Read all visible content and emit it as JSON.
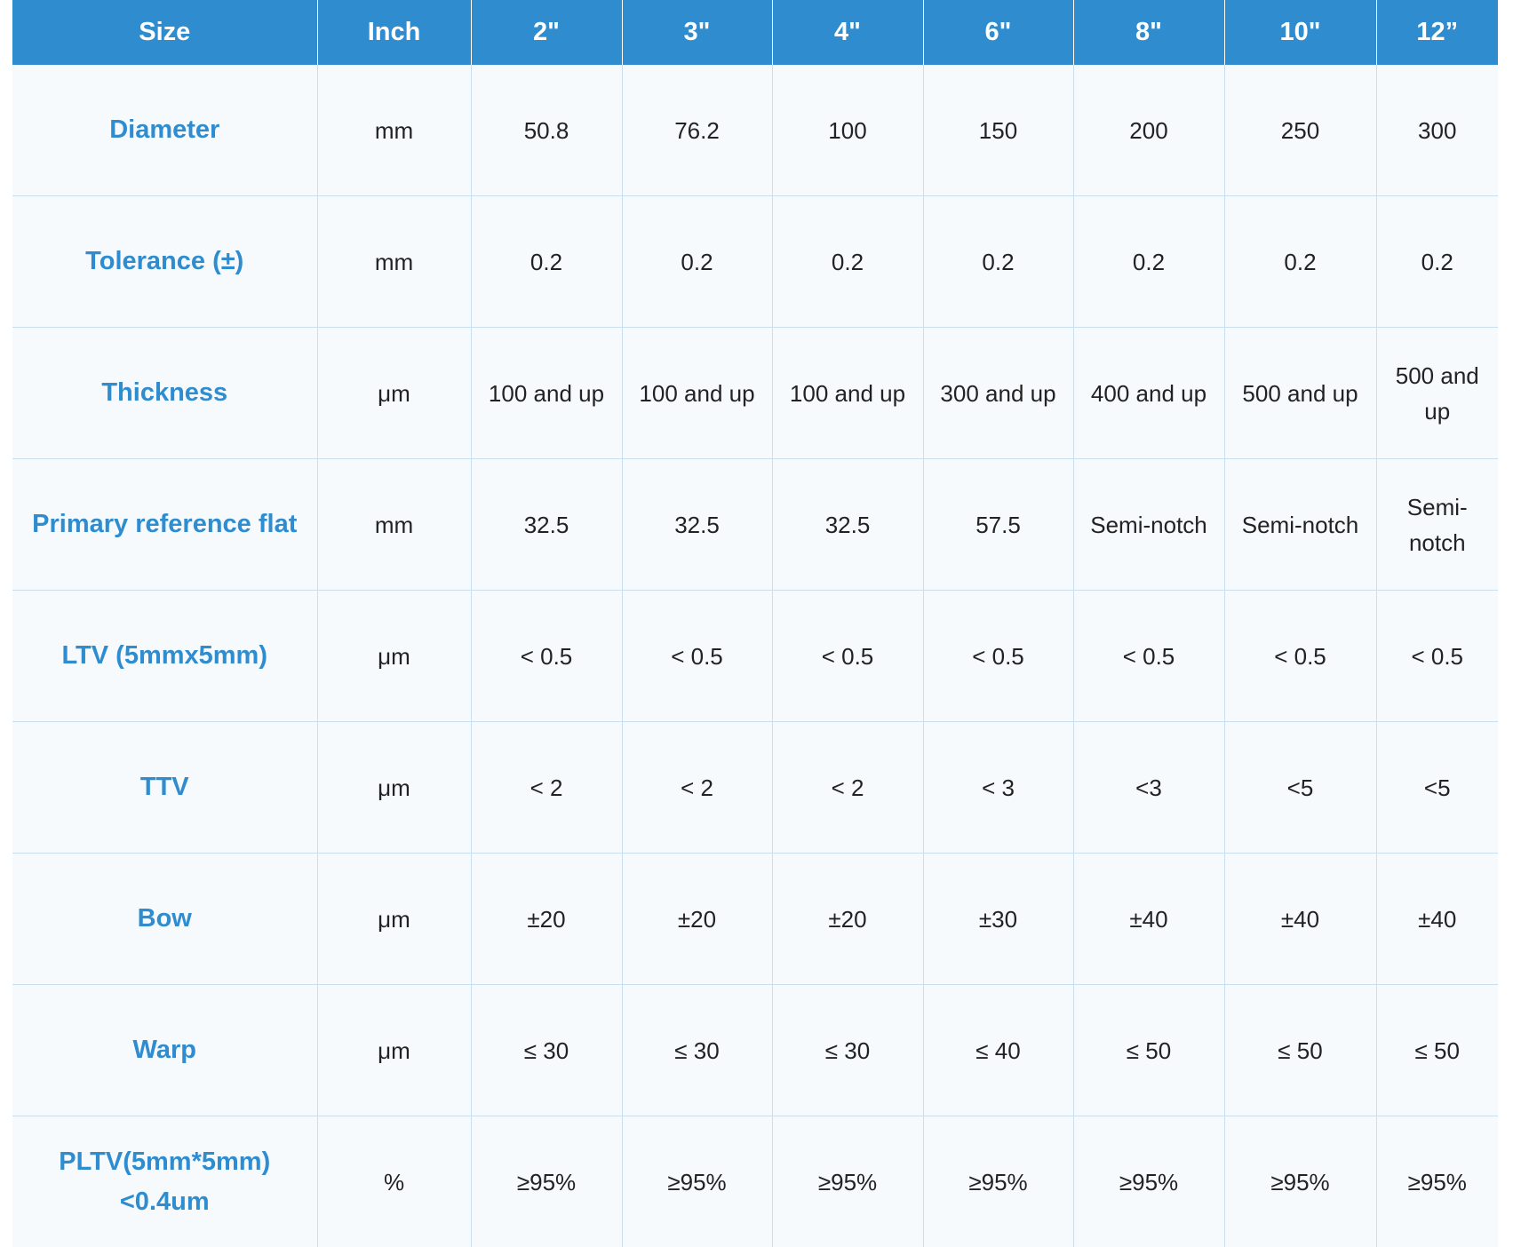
{
  "table": {
    "headers": [
      "Size",
      "Inch",
      "2\"",
      "3\"",
      "4\"",
      "6\"",
      "8\"",
      "10\"",
      "12”"
    ],
    "rows": [
      {
        "param": "Diameter",
        "unit": "mm",
        "values": [
          "50.8",
          "76.2",
          "100",
          "150",
          "200",
          "250",
          "300"
        ]
      },
      {
        "param": "Tolerance (±)",
        "unit": "mm",
        "values": [
          "0.2",
          "0.2",
          "0.2",
          "0.2",
          "0.2",
          "0.2",
          "0.2"
        ]
      },
      {
        "param": "Thickness",
        "unit": "μm",
        "values": [
          "100 and up",
          "100 and up",
          "100 and up",
          "300 and up",
          "400 and up",
          "500 and up",
          "500 and up"
        ]
      },
      {
        "param": "Primary reference flat",
        "unit": "mm",
        "values": [
          "32.5",
          "32.5",
          "32.5",
          "57.5",
          "Semi-notch",
          "Semi-notch",
          "Semi-notch"
        ]
      },
      {
        "param": "LTV (5mmx5mm)",
        "unit": "μm",
        "values": [
          "< 0.5",
          "< 0.5",
          "< 0.5",
          "< 0.5",
          "< 0.5",
          "< 0.5",
          "< 0.5"
        ]
      },
      {
        "param": "TTV",
        "unit": "μm",
        "values": [
          "< 2",
          "< 2",
          "< 2",
          "< 3",
          "<3",
          "<5",
          "<5"
        ]
      },
      {
        "param": "Bow",
        "unit": "μm",
        "values": [
          "±20",
          "±20",
          "±20",
          "±30",
          "±40",
          "±40",
          "±40"
        ]
      },
      {
        "param": "Warp",
        "unit": "μm",
        "values": [
          "≤ 30",
          "≤ 30",
          "≤ 30",
          "≤ 40",
          "≤ 50",
          "≤ 50",
          "≤ 50"
        ]
      },
      {
        "param": "PLTV(5mm*5mm) <0.4um",
        "unit": "%",
        "values": [
          "≥95%",
          "≥95%",
          "≥95%",
          "≥95%",
          "≥95%",
          "≥95%",
          "≥95%"
        ]
      }
    ]
  },
  "colors": {
    "header_bg": "#2e8ccf",
    "header_text": "#ffffff",
    "param_text": "#2e8ccf",
    "cell_text": "#222222",
    "grid": "#c9dff0"
  }
}
